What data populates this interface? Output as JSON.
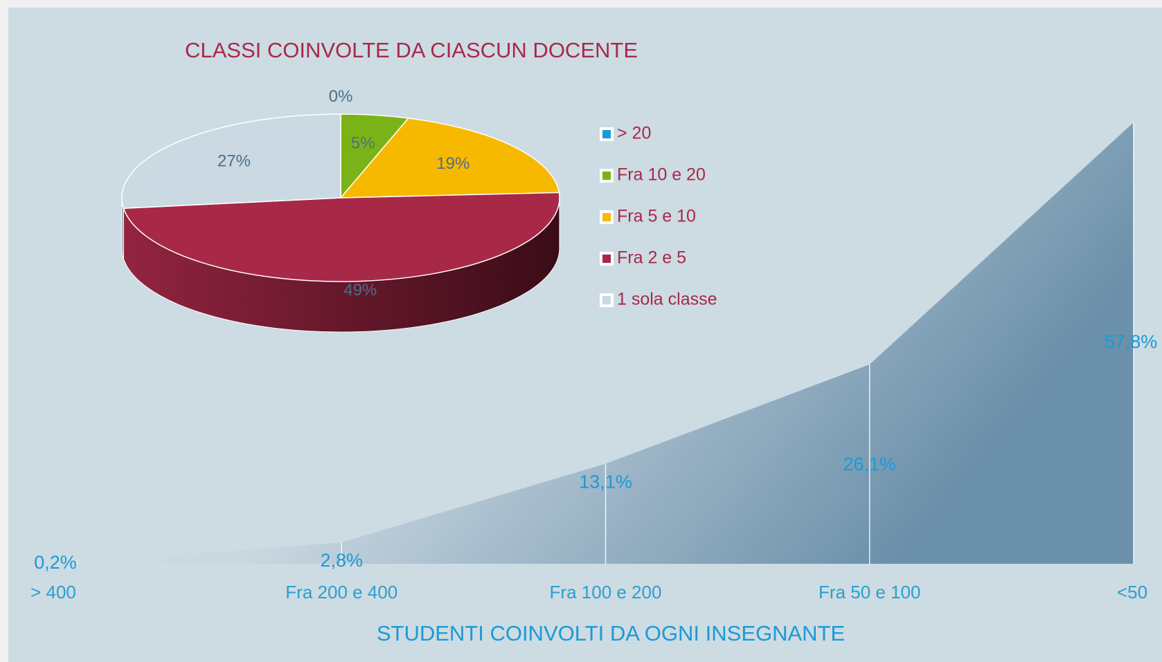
{
  "chart_data": [
    {
      "type": "pie",
      "title": "CLASSI COINVOLTE DA CIASCUN DOCENTE",
      "categories": [
        "> 20",
        "Fra 10 e 20",
        "Fra 5 e 10",
        "Fra 2 e 5",
        "1 sola classe"
      ],
      "values": [
        0,
        5,
        19,
        49,
        27
      ],
      "value_labels": [
        "0%",
        "5%",
        "19%",
        "49%",
        "27%"
      ],
      "colors": [
        "#1a9ad6",
        "#7ab317",
        "#f7b900",
        "#a82848",
        "#cbd9e2"
      ],
      "legend": "right"
    },
    {
      "type": "area",
      "title": "STUDENTI COINVOLTI DA OGNI INSEGNANTE",
      "categories": [
        "> 400",
        "Fra 200 e 400",
        "Fra 100 e 200",
        "Fra 50 e 100",
        "<50"
      ],
      "values": [
        0.2,
        2.8,
        13.1,
        26.1,
        57.8
      ],
      "value_labels": [
        "0,2%",
        "2,8%",
        "13,1%",
        "26,1%",
        "57,8%"
      ],
      "color": "#6f93ad"
    }
  ]
}
